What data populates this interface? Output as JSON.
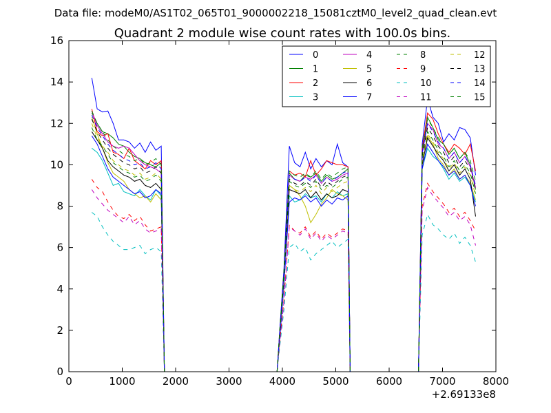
{
  "figure": {
    "suptitle": "Data file: modeM0/AS1T02_065T01_9000002218_15081cztM0_level2_quad_clean.evt",
    "x_offset_label": "+2.69133e8"
  },
  "chart_data": {
    "type": "line",
    "title": "Quadrant 2 module wise count rates with 100.0s bins.",
    "xlabel": "",
    "ylabel": "",
    "xlim": [
      0,
      8000
    ],
    "ylim": [
      0,
      16
    ],
    "x_ticks": [
      "0",
      "1000",
      "2000",
      "3000",
      "4000",
      "5000",
      "6000",
      "7000",
      "8000"
    ],
    "y_ticks": [
      "0",
      "2",
      "4",
      "6",
      "8",
      "10",
      "12",
      "14",
      "16"
    ],
    "grid": false,
    "legend_position": "top-right",
    "legend_columns": 4,
    "x": [
      430,
      530,
      630,
      730,
      830,
      930,
      1030,
      1130,
      1230,
      1330,
      1430,
      1530,
      1630,
      1730,
      1790,
      1840,
      1900,
      2000,
      2500,
      3000,
      3500,
      3900,
      3950,
      4030,
      4130,
      4230,
      4330,
      4430,
      4530,
      4630,
      4730,
      4830,
      4930,
      5030,
      5130,
      5230,
      5270,
      5320,
      5400,
      6000,
      6500,
      6550,
      6620,
      6720,
      6820,
      6920,
      7020,
      7120,
      7220,
      7320,
      7420,
      7520,
      7620
    ],
    "series": [
      {
        "name": "0",
        "color": "#0000ff",
        "dash": "solid",
        "values": [
          14.2,
          12.7,
          12.55,
          12.6,
          12.0,
          11.2,
          11.2,
          11.1,
          10.8,
          11.05,
          10.6,
          11.1,
          10.7,
          10.9,
          0,
          0,
          0,
          0,
          0,
          0,
          0,
          0,
          2.0,
          5.0,
          10.9,
          10.1,
          9.9,
          10.6,
          9.8,
          10.3,
          9.9,
          10.2,
          10.0,
          11.0,
          10.1,
          9.9,
          0,
          0,
          0,
          0,
          0,
          0,
          11.0,
          13.2,
          12.3,
          12.0,
          11.1,
          11.5,
          11.2,
          11.8,
          11.7,
          11.3,
          9.5
        ]
      },
      {
        "name": "1",
        "color": "#008000",
        "dash": "solid",
        "values": [
          12.5,
          12.0,
          11.6,
          11.5,
          11.3,
          11.0,
          10.9,
          10.6,
          10.4,
          10.3,
          10.1,
          10.0,
          9.9,
          10.1,
          0,
          0,
          0,
          0,
          0,
          0,
          0,
          0,
          1.8,
          4.6,
          9.6,
          9.3,
          9.2,
          9.5,
          9.4,
          9.6,
          9.2,
          9.5,
          9.3,
          9.4,
          9.6,
          9.8,
          0,
          0,
          0,
          0,
          0,
          0,
          10.6,
          12.3,
          11.8,
          11.2,
          11.0,
          10.5,
          10.8,
          10.3,
          10.6,
          10.0,
          8.8
        ]
      },
      {
        "name": "2",
        "color": "#ff0000",
        "dash": "solid",
        "values": [
          12.7,
          11.6,
          11.4,
          11.5,
          10.6,
          10.5,
          10.3,
          10.8,
          10.2,
          10.0,
          9.8,
          10.2,
          10.0,
          10.2,
          0,
          0,
          0,
          0,
          0,
          0,
          0,
          0,
          1.9,
          4.8,
          9.7,
          9.5,
          9.6,
          9.4,
          10.2,
          9.5,
          9.8,
          10.2,
          10.1,
          10.0,
          10.0,
          9.9,
          0,
          0,
          0,
          0,
          0,
          0,
          10.8,
          12.5,
          12.2,
          11.5,
          11.0,
          10.6,
          11.0,
          10.8,
          10.5,
          11.0,
          9.7
        ]
      },
      {
        "name": "3",
        "color": "#00bfbf",
        "dash": "solid",
        "values": [
          10.8,
          10.6,
          10.2,
          9.6,
          9.0,
          9.1,
          8.7,
          8.6,
          8.5,
          8.8,
          8.5,
          8.3,
          8.8,
          8.5,
          0,
          0,
          0,
          0,
          0,
          0,
          0,
          0,
          1.6,
          4.2,
          8.5,
          8.2,
          8.3,
          8.6,
          8.4,
          8.5,
          8.2,
          8.6,
          8.4,
          8.7,
          8.5,
          8.6,
          0,
          0,
          0,
          0,
          0,
          0,
          9.8,
          10.8,
          10.4,
          10.2,
          9.8,
          9.3,
          9.6,
          9.2,
          9.4,
          9.0,
          8.2
        ]
      },
      {
        "name": "4",
        "color": "#bf00bf",
        "dash": "solid",
        "values": [
          12.6,
          11.9,
          11.5,
          11.1,
          10.9,
          10.8,
          10.9,
          10.8,
          10.5,
          10.2,
          10.0,
          9.9,
          9.8,
          9.6,
          0,
          0,
          0,
          0,
          0,
          0,
          0,
          0,
          1.8,
          4.5,
          9.5,
          9.3,
          9.2,
          9.4,
          9.3,
          9.5,
          9.1,
          9.4,
          9.2,
          9.3,
          9.5,
          9.6,
          0,
          0,
          0,
          0,
          0,
          0,
          10.5,
          12.0,
          11.7,
          11.0,
          10.8,
          10.3,
          10.6,
          10.1,
          10.4,
          9.9,
          8.9
        ]
      },
      {
        "name": "5",
        "color": "#bfbf00",
        "dash": "solid",
        "values": [
          12.3,
          11.5,
          10.8,
          10.1,
          9.6,
          9.4,
          9.2,
          8.8,
          8.6,
          8.4,
          8.5,
          8.2,
          8.6,
          8.3,
          0,
          0,
          0,
          0,
          0,
          0,
          0,
          0,
          1.7,
          4.3,
          9.0,
          8.8,
          8.5,
          8.0,
          7.2,
          7.6,
          8.1,
          8.4,
          8.8,
          8.6,
          8.5,
          8.3,
          0,
          0,
          0,
          0,
          0,
          0,
          10.0,
          11.4,
          11.0,
          10.3,
          10.0,
          9.5,
          9.8,
          9.3,
          9.5,
          9.1,
          8.3
        ]
      },
      {
        "name": "6",
        "color": "#000000",
        "dash": "solid",
        "values": [
          11.6,
          11.2,
          10.8,
          10.2,
          9.9,
          9.7,
          9.5,
          9.4,
          9.2,
          9.3,
          9.0,
          8.9,
          9.1,
          8.8,
          0,
          0,
          0,
          0,
          0,
          0,
          0,
          0,
          1.7,
          4.4,
          8.8,
          8.7,
          8.6,
          8.8,
          8.4,
          8.7,
          8.3,
          8.6,
          8.4,
          8.5,
          8.8,
          8.7,
          0,
          0,
          0,
          0,
          0,
          0,
          10.0,
          11.3,
          10.9,
          10.5,
          10.2,
          9.7,
          10.0,
          9.5,
          9.8,
          9.3,
          7.5
        ]
      },
      {
        "name": "7",
        "color": "#0000ff",
        "dash": "solid",
        "values": [
          11.4,
          11.0,
          10.4,
          9.8,
          9.4,
          9.2,
          9.0,
          8.8,
          8.6,
          8.7,
          8.4,
          8.5,
          8.8,
          8.6,
          0,
          0,
          0,
          0,
          0,
          0,
          0,
          0,
          1.6,
          4.2,
          8.2,
          8.4,
          8.3,
          8.5,
          8.2,
          8.4,
          8.0,
          8.3,
          8.1,
          8.4,
          8.3,
          8.5,
          0,
          0,
          0,
          0,
          0,
          0,
          9.8,
          11.0,
          10.6,
          10.2,
          9.9,
          9.5,
          9.7,
          9.3,
          9.5,
          9.0,
          8.0
        ]
      },
      {
        "name": "8",
        "color": "#008000",
        "dash": "dashed",
        "values": [
          11.8,
          11.2,
          10.9,
          10.5,
          10.1,
          9.9,
          9.7,
          9.6,
          9.4,
          9.5,
          9.2,
          9.3,
          9.5,
          9.2,
          0,
          0,
          0,
          0,
          0,
          0,
          0,
          0,
          1.8,
          4.5,
          9.2,
          9.0,
          8.9,
          9.1,
          8.9,
          9.2,
          8.8,
          9.0,
          8.9,
          9.1,
          9.3,
          9.4,
          0,
          0,
          0,
          0,
          0,
          0,
          10.2,
          11.6,
          11.2,
          10.7,
          10.4,
          9.9,
          10.2,
          9.7,
          10.0,
          9.6,
          8.6
        ]
      },
      {
        "name": "9",
        "color": "#ff0000",
        "dash": "dashed",
        "values": [
          9.3,
          8.9,
          8.7,
          8.2,
          7.8,
          7.5,
          7.4,
          7.6,
          7.3,
          7.5,
          7.1,
          6.8,
          6.9,
          7.0,
          0,
          0,
          0,
          0,
          0,
          0,
          0,
          0,
          1.4,
          3.5,
          7.1,
          6.8,
          6.7,
          7.0,
          6.5,
          6.8,
          6.4,
          6.7,
          6.5,
          6.7,
          6.9,
          6.8,
          0,
          0,
          0,
          0,
          0,
          0,
          8.0,
          9.1,
          8.7,
          8.4,
          8.1,
          7.7,
          7.9,
          7.5,
          7.7,
          7.3,
          6.8
        ]
      },
      {
        "name": "10",
        "color": "#00bfbf",
        "dash": "dashed",
        "values": [
          7.7,
          7.5,
          7.0,
          6.6,
          6.3,
          6.1,
          5.9,
          5.9,
          6.0,
          6.1,
          5.7,
          5.9,
          6.0,
          5.8,
          0,
          0,
          0,
          0,
          0,
          0,
          0,
          0,
          1.2,
          3.0,
          6.0,
          6.2,
          5.8,
          6.0,
          5.4,
          5.7,
          5.9,
          6.1,
          6.3,
          6.0,
          6.2,
          6.4,
          0,
          0,
          0,
          0,
          0,
          0,
          6.6,
          7.6,
          7.1,
          6.9,
          6.6,
          6.4,
          6.7,
          6.2,
          6.5,
          6.1,
          5.3
        ]
      },
      {
        "name": "11",
        "color": "#bf00bf",
        "dash": "dashed",
        "values": [
          8.8,
          8.4,
          8.1,
          7.8,
          7.6,
          7.4,
          7.2,
          7.5,
          7.1,
          7.3,
          6.9,
          6.7,
          6.8,
          6.9,
          0,
          0,
          0,
          0,
          0,
          0,
          0,
          0,
          1.4,
          3.4,
          7.0,
          6.8,
          6.6,
          6.9,
          6.4,
          6.7,
          6.3,
          6.6,
          6.4,
          6.6,
          6.8,
          6.7,
          0,
          0,
          0,
          0,
          0,
          0,
          7.8,
          8.9,
          8.5,
          8.2,
          7.9,
          7.5,
          7.7,
          7.3,
          7.5,
          7.1,
          6.1
        ]
      },
      {
        "name": "12",
        "color": "#bfbf00",
        "dash": "dashed",
        "values": [
          12.0,
          11.3,
          10.9,
          10.6,
          10.2,
          10.0,
          9.8,
          9.7,
          9.5,
          9.6,
          9.3,
          9.4,
          9.6,
          9.3,
          0,
          0,
          0,
          0,
          0,
          0,
          0,
          0,
          1.8,
          4.5,
          9.0,
          8.8,
          8.7,
          8.9,
          8.7,
          9.0,
          8.6,
          8.9,
          8.7,
          8.9,
          9.1,
          9.2,
          0,
          0,
          0,
          0,
          0,
          0,
          10.1,
          11.5,
          11.1,
          10.6,
          10.3,
          9.8,
          10.1,
          9.6,
          9.9,
          9.5,
          8.5
        ]
      },
      {
        "name": "13",
        "color": "#000000",
        "dash": "dashed",
        "values": [
          12.2,
          11.6,
          11.2,
          10.8,
          10.5,
          10.3,
          10.1,
          10.0,
          9.8,
          9.9,
          9.6,
          9.7,
          9.9,
          9.6,
          0,
          0,
          0,
          0,
          0,
          0,
          0,
          0,
          1.9,
          4.7,
          9.3,
          9.1,
          9.0,
          9.2,
          9.0,
          9.3,
          8.9,
          9.2,
          9.0,
          9.2,
          9.4,
          9.5,
          0,
          0,
          0,
          0,
          0,
          0,
          10.4,
          11.8,
          11.4,
          10.9,
          10.6,
          10.1,
          10.4,
          9.9,
          10.2,
          9.8,
          8.8
        ]
      },
      {
        "name": "14",
        "color": "#0000ff",
        "dash": "dashed",
        "values": [
          12.4,
          11.8,
          11.4,
          11.0,
          10.7,
          10.5,
          10.3,
          10.2,
          10.0,
          10.1,
          9.8,
          9.9,
          10.1,
          9.8,
          0,
          0,
          0,
          0,
          0,
          0,
          0,
          0,
          1.9,
          4.8,
          9.5,
          9.3,
          9.2,
          9.4,
          9.2,
          9.5,
          9.1,
          9.4,
          9.2,
          9.4,
          9.6,
          9.7,
          0,
          0,
          0,
          0,
          0,
          0,
          10.6,
          12.0,
          11.6,
          11.1,
          10.8,
          10.3,
          10.6,
          10.1,
          10.4,
          10.0,
          9.0
        ]
      },
      {
        "name": "15",
        "color": "#008000",
        "dash": "dashed",
        "values": [
          12.6,
          12.0,
          11.6,
          11.2,
          10.9,
          10.7,
          10.5,
          10.4,
          10.2,
          10.3,
          10.0,
          10.1,
          10.3,
          10.0,
          0,
          0,
          0,
          0,
          0,
          0,
          0,
          0,
          2.0,
          4.9,
          9.7,
          9.5,
          9.4,
          9.6,
          9.4,
          9.7,
          9.3,
          9.6,
          9.4,
          9.6,
          9.8,
          9.9,
          0,
          0,
          0,
          0,
          0,
          0,
          10.8,
          12.2,
          11.8,
          11.3,
          11.0,
          10.5,
          10.8,
          10.3,
          10.6,
          10.2,
          9.2
        ]
      }
    ]
  }
}
